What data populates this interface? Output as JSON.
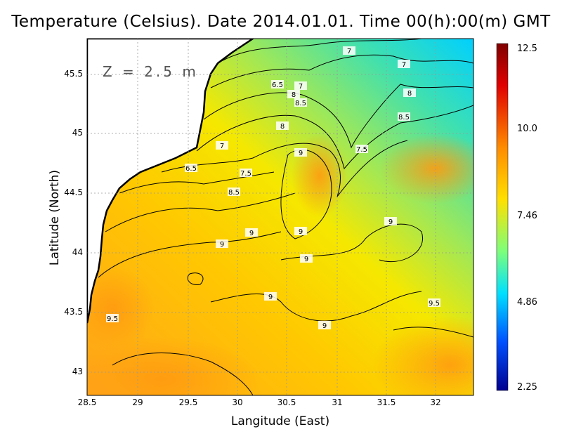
{
  "title": "Temperature (Celsius). Date 2014.01.01. Time 00(h):00(m) GMT",
  "depth_label": "Z = 2.5 m",
  "axes": {
    "xlabel": "Langitude (East)",
    "ylabel": "Latitude (North)",
    "xlim": [
      28.5,
      32.4
    ],
    "ylim": [
      42.8,
      45.8
    ],
    "xticks": [
      "28.5",
      "29",
      "29.5",
      "30",
      "30.5",
      "31",
      "31.5",
      "32"
    ],
    "yticks": [
      "43",
      "43.5",
      "44",
      "44.5",
      "45",
      "45.5"
    ]
  },
  "colorbar": {
    "labels": [
      "12.5",
      "10.0",
      "7.46",
      "4.86",
      "2.25"
    ],
    "min": 2.25,
    "max": 12.5
  },
  "contour_labels": [
    "7",
    "7",
    "6.5",
    "7",
    "8",
    "8.5",
    "8",
    "8.5",
    "8",
    "7",
    "7.5",
    "9",
    "6.5",
    "7.5",
    "8.5",
    "9",
    "9",
    "9",
    "9",
    "9",
    "9",
    "9",
    "9.5",
    "9.5"
  ],
  "colors": {
    "land": "#ffffff",
    "coast": "#000000",
    "warm": "#ff9f1a",
    "cold": "#00d2ff"
  }
}
